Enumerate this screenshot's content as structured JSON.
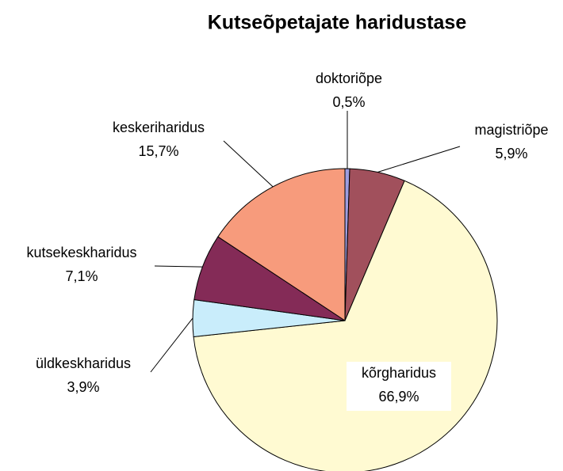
{
  "chart_data": {
    "type": "pie",
    "title": "Kutseõpetajate haridustase",
    "categories": [
      "doktoriõpe",
      "magistriõpe",
      "kõrgharidus",
      "üldkeskharidus",
      "kutsekeskharidus",
      "keskeriharidus"
    ],
    "values": [
      0.5,
      5.9,
      66.9,
      3.9,
      7.1,
      15.7
    ],
    "value_labels": [
      "0,5%",
      "5,9%",
      "66,9%",
      "3,9%",
      "7,1%",
      "15,7%"
    ],
    "colors": [
      "#9d9ddf",
      "#a1505c",
      "#fffad2",
      "#c9edfb",
      "#842b57",
      "#f79b7c"
    ]
  }
}
